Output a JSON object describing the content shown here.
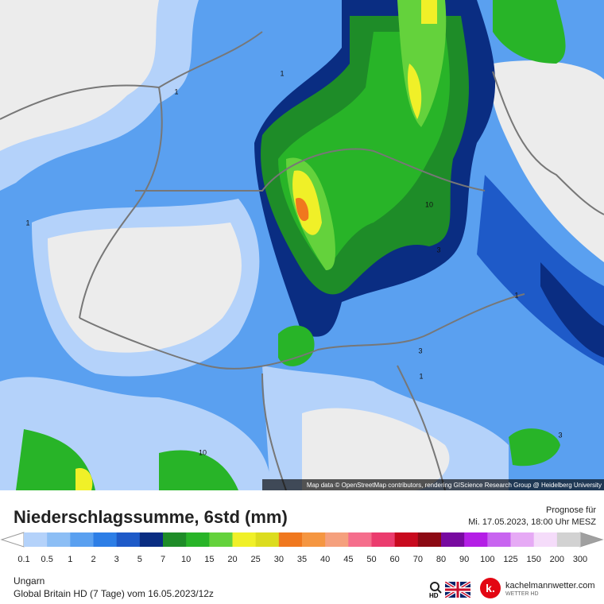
{
  "map": {
    "attribution": "Map data © OpenStreetMap contributors, rendering GIScience Research Group @ Heidelberg University",
    "contour_labels": [
      "1",
      "1",
      "1",
      "10",
      "3",
      "3",
      "1",
      "1",
      "3",
      "10"
    ]
  },
  "header": {
    "title": "Niederschlagssumme, 6std (mm)",
    "forecast_label": "Prognose für",
    "forecast_time": "Mi. 17.05.2023, 18:00 Uhr MESZ"
  },
  "legend": {
    "labels": [
      "0.1",
      "0.5",
      "1",
      "2",
      "3",
      "5",
      "7",
      "10",
      "15",
      "20",
      "25",
      "30",
      "35",
      "40",
      "45",
      "50",
      "60",
      "70",
      "80",
      "90",
      "100",
      "125",
      "150",
      "200",
      "300"
    ],
    "colors": [
      "#b4d2fa",
      "#8cbef5",
      "#5aa0f0",
      "#2d7ee6",
      "#1e5ac8",
      "#0a2d82",
      "#1e8c28",
      "#28b428",
      "#64d23c",
      "#f0f028",
      "#dcdc1e",
      "#f0781e",
      "#f59641",
      "#f5a07d",
      "#f56e8c",
      "#eb3c6e",
      "#c80a1e",
      "#8c0a14",
      "#780aa0",
      "#b41ee6",
      "#c864f0",
      "#e6aaf5",
      "#f5dcfa",
      "#d2d2d2"
    ],
    "under_color": "#ffffff",
    "over_color": "#a0a0a0"
  },
  "footer": {
    "region": "Ungarn",
    "model": "Global Britain HD (7 Tage) vom 16.05.2023/12z",
    "hd": "HD",
    "logo_letter": "k.",
    "site": "kachelmannwetter.com",
    "site_sub": "WETTER HD"
  }
}
